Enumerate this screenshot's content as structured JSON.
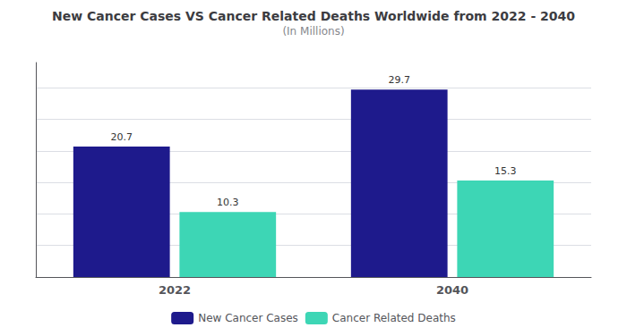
{
  "chart_data": {
    "type": "bar",
    "title": "New Cancer Cases VS Cancer Related Deaths Worldwide from 2022 - 2040",
    "subtitle": "(In Millions)",
    "categories": [
      "2022",
      "2040"
    ],
    "series": [
      {
        "name": "New Cancer Cases",
        "color": "#1e1a8c",
        "values": [
          20.7,
          29.7
        ]
      },
      {
        "name": "Cancer Related Deaths",
        "color": "#3dd6b5",
        "values": [
          10.3,
          15.3
        ]
      }
    ],
    "ylim": [
      0,
      34
    ],
    "yticks": [
      0,
      5,
      10,
      15,
      20,
      25,
      30
    ],
    "grid": true,
    "tick_labels": "x",
    "data_labels": true,
    "legend": "bottom"
  }
}
